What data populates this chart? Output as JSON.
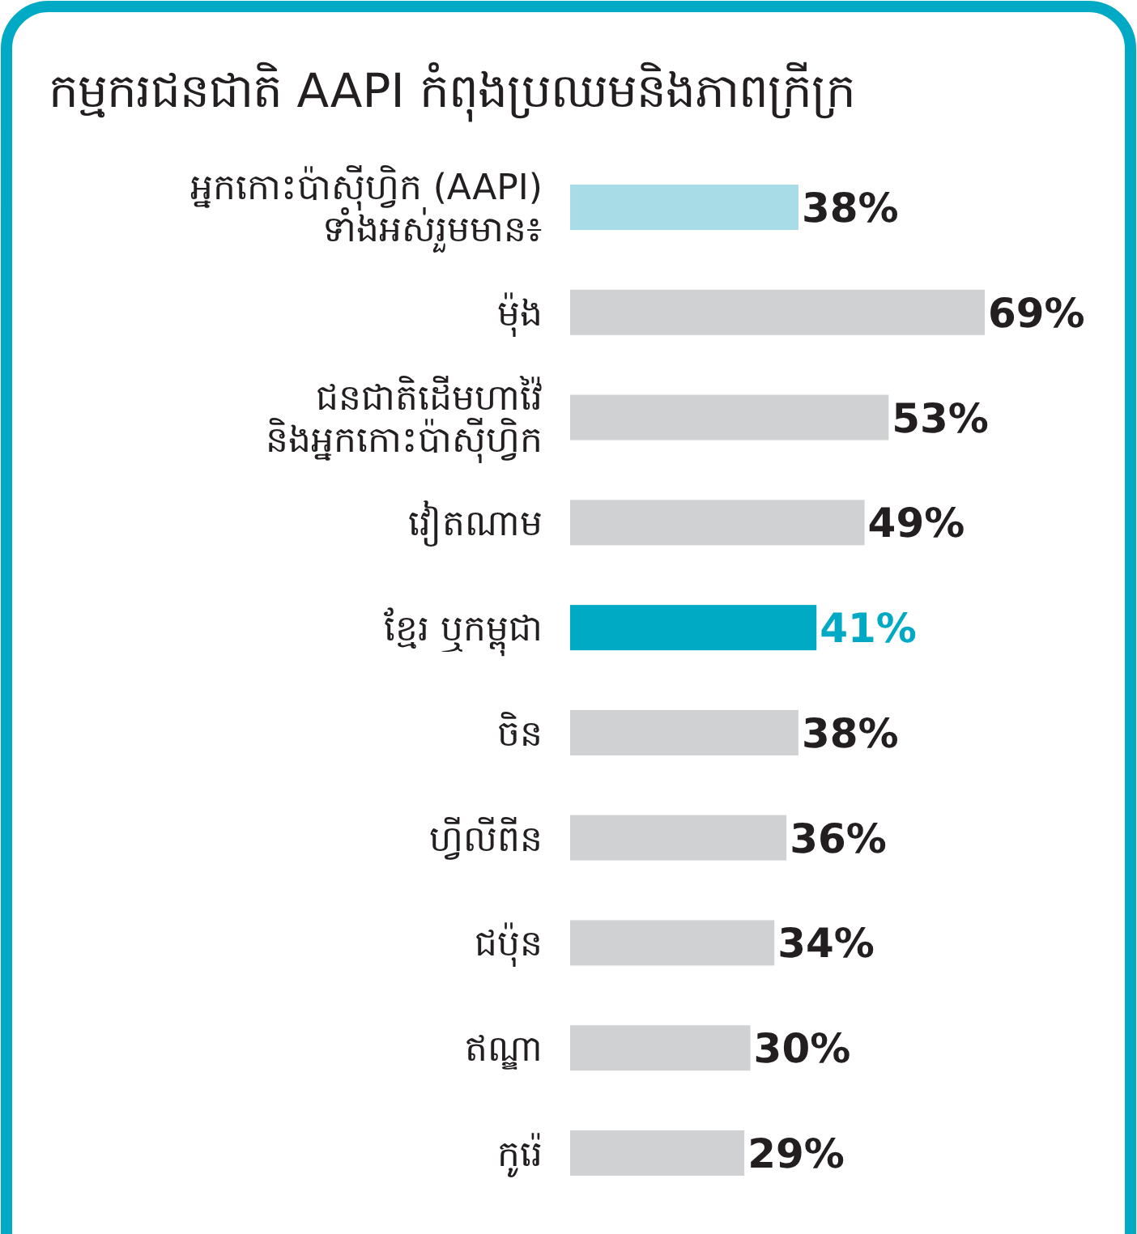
{
  "chart_data": {
    "type": "bar",
    "orientation": "horizontal",
    "title": "កម្មករជនជាតិ AAPI កំពុងប្រឈមនិងភាពក្រីក្រ",
    "categories": [
      "អ្នកកោះប៉ាស៊ីហ្វិក (AAPI)\nទាំងអស់រួមមាន៖",
      "ម៉ុង",
      "ជនជាតិដើមហាវ៉ៃ\nនិងអ្នកកោះប៉ាស៊ីហ្វិក",
      "វៀតណាម",
      "ខ្មែរ ឬកម្ពុជា",
      "ចិន",
      "ហ្វីលីពីន",
      "ជប៉ុន",
      "ឥណ្ឌា",
      "កូរ៉េ"
    ],
    "values": [
      38,
      69,
      53,
      49,
      41,
      38,
      36,
      34,
      30,
      29
    ],
    "value_labels": [
      "38%",
      "69%",
      "53%",
      "49%",
      "41%",
      "38%",
      "36%",
      "34%",
      "30%",
      "29%"
    ],
    "colors": [
      "#a8dde8",
      "#d0d1d3",
      "#d0d1d3",
      "#d0d1d3",
      "#00a9c4",
      "#d0d1d3",
      "#d0d1d3",
      "#d0d1d3",
      "#d0d1d3",
      "#d0d1d3"
    ]
  }
}
